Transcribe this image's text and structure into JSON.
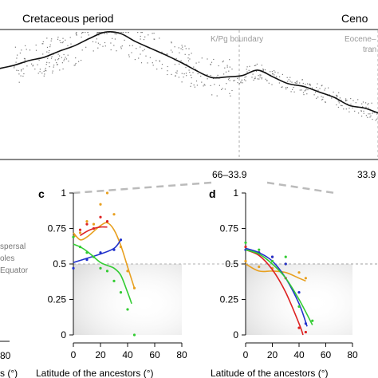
{
  "top_panel": {
    "period_left": "Cretaceous period",
    "period_right": "Ceno",
    "boundary_label": "K/Pg boundary",
    "eocene_label_1": "Eocene–",
    "eocene_label_2": "tran",
    "interval_left": "66–33.9",
    "interval_right": "33.9"
  },
  "left_stub": {
    "legend_1": "spersal",
    "legend_2": "oles",
    "legend_3": "Equator",
    "x_tick_80": "80",
    "x_label": "s (°)"
  },
  "chart_data": [
    {
      "type": "line",
      "panel": "top",
      "title": "",
      "xlabel": "",
      "ylabel": "",
      "smooth_curve": {
        "t": [
          0,
          4,
          8,
          12,
          16,
          20,
          24,
          28,
          32,
          36,
          40,
          44,
          48,
          52,
          56,
          60,
          64,
          68,
          72,
          76,
          80,
          84,
          88,
          92,
          96,
          100
        ],
        "y": [
          0.28,
          0.33,
          0.4,
          0.45,
          0.54,
          0.62,
          0.73,
          0.82,
          0.8,
          0.68,
          0.58,
          0.48,
          0.37,
          0.25,
          0.15,
          0.16,
          0.18,
          0.26,
          0.16,
          0.06,
          0.02,
          -0.06,
          -0.14,
          -0.26,
          -0.3,
          -0.38
        ]
      },
      "boundaries": [
        "K/Pg boundary",
        "Eocene–"
      ]
    },
    {
      "type": "scatter",
      "panel": "c",
      "xlabel": "Latitude of the ancestors (°)",
      "ylabel": "",
      "xlim": [
        0,
        80
      ],
      "ylim": [
        0,
        1
      ],
      "x_ticks": [
        0,
        20,
        40,
        60,
        80
      ],
      "y_ticks": [
        0,
        0.25,
        0.5,
        0.75,
        1
      ],
      "y_tick_labels": [
        "0",
        "0.25",
        "0.5",
        "0.75",
        "1"
      ],
      "reference_line": 0.5,
      "series": [
        {
          "color": "#e8a020",
          "points": [
            [
              1,
              0.7
            ],
            [
              5,
              0.72
            ],
            [
              10,
              0.8
            ],
            [
              15,
              0.78
            ],
            [
              20,
              0.92
            ],
            [
              25,
              1.0
            ],
            [
              30,
              0.85
            ],
            [
              35,
              0.62
            ],
            [
              40,
              0.45
            ],
            [
              45,
              0.33
            ]
          ],
          "fit": [
            [
              0,
              0.72
            ],
            [
              5,
              0.67
            ],
            [
              10,
              0.69
            ],
            [
              15,
              0.73
            ],
            [
              20,
              0.77
            ],
            [
              25,
              0.79
            ],
            [
              30,
              0.74
            ],
            [
              35,
              0.63
            ],
            [
              40,
              0.48
            ],
            [
              45,
              0.33
            ]
          ]
        },
        {
          "color": "#dd2222",
          "points": [
            [
              5,
              0.74
            ],
            [
              10,
              0.78
            ],
            [
              15,
              0.75
            ],
            [
              20,
              0.83
            ],
            [
              25,
              0.8
            ]
          ],
          "fit": [
            [
              5,
              0.7
            ],
            [
              10,
              0.73
            ],
            [
              15,
              0.75
            ],
            [
              20,
              0.76
            ],
            [
              25,
              0.76
            ]
          ]
        },
        {
          "color": "#2233cc",
          "points": [
            [
              0,
              0.47
            ],
            [
              10,
              0.53
            ],
            [
              20,
              0.58
            ],
            [
              30,
              0.6
            ],
            [
              35,
              0.67
            ]
          ],
          "fit": [
            [
              0,
              0.51
            ],
            [
              10,
              0.54
            ],
            [
              20,
              0.57
            ],
            [
              30,
              0.61
            ],
            [
              35,
              0.67
            ]
          ]
        },
        {
          "color": "#33cc33",
          "points": [
            [
              0,
              0.69
            ],
            [
              5,
              0.62
            ],
            [
              10,
              0.58
            ],
            [
              15,
              0.55
            ],
            [
              20,
              0.47
            ],
            [
              25,
              0.45
            ],
            [
              30,
              0.38
            ],
            [
              35,
              0.3
            ],
            [
              40,
              0.18
            ],
            [
              45,
              0.0
            ]
          ],
          "fit": [
            [
              0,
              0.64
            ],
            [
              5,
              0.62
            ],
            [
              10,
              0.59
            ],
            [
              15,
              0.55
            ],
            [
              20,
              0.51
            ],
            [
              25,
              0.49
            ],
            [
              30,
              0.47
            ],
            [
              35,
              0.42
            ],
            [
              40,
              0.3
            ],
            [
              43,
              0.22
            ]
          ]
        }
      ]
    },
    {
      "type": "scatter",
      "panel": "d",
      "xlabel": "Latitude of the ancestors (°)",
      "ylabel": "",
      "xlim": [
        0,
        80
      ],
      "ylim": [
        0,
        1
      ],
      "x_ticks": [
        0,
        20,
        40,
        60,
        80
      ],
      "y_ticks": [
        0,
        0.25,
        0.5,
        0.75,
        1
      ],
      "y_tick_labels": [
        "0",
        "0.25",
        "0.5",
        "0.75",
        "1"
      ],
      "reference_line": 0.5,
      "series": [
        {
          "color": "#e8a020",
          "points": [
            [
              0,
              0.52
            ],
            [
              10,
              0.48
            ],
            [
              20,
              0.47
            ],
            [
              30,
              0.5
            ],
            [
              40,
              0.44
            ],
            [
              45,
              0.4
            ]
          ],
          "fit": [
            [
              0,
              0.5
            ],
            [
              10,
              0.45
            ],
            [
              20,
              0.45
            ],
            [
              30,
              0.44
            ],
            [
              40,
              0.4
            ],
            [
              45,
              0.38
            ]
          ]
        },
        {
          "color": "#dd2222",
          "points": [
            [
              0,
              0.62
            ],
            [
              10,
              0.58
            ],
            [
              20,
              0.55
            ],
            [
              30,
              0.4
            ],
            [
              40,
              0.05
            ],
            [
              45,
              0.02
            ]
          ],
          "fit": [
            [
              0,
              0.6
            ],
            [
              10,
              0.56
            ],
            [
              20,
              0.46
            ],
            [
              30,
              0.3
            ],
            [
              40,
              0.08
            ],
            [
              43,
              0.0
            ]
          ]
        },
        {
          "color": "#2233cc",
          "points": [
            [
              0,
              0.6
            ],
            [
              10,
              0.58
            ],
            [
              20,
              0.55
            ],
            [
              30,
              0.5
            ],
            [
              40,
              0.3
            ],
            [
              45,
              0.08
            ]
          ],
          "fit": [
            [
              0,
              0.61
            ],
            [
              10,
              0.58
            ],
            [
              20,
              0.52
            ],
            [
              30,
              0.4
            ],
            [
              40,
              0.22
            ],
            [
              46,
              0.06
            ]
          ]
        },
        {
          "color": "#33cc33",
          "points": [
            [
              0,
              0.65
            ],
            [
              10,
              0.6
            ],
            [
              20,
              0.52
            ],
            [
              30,
              0.55
            ],
            [
              40,
              0.2
            ],
            [
              50,
              0.1
            ]
          ],
          "fit": [
            [
              0,
              0.6
            ],
            [
              10,
              0.57
            ],
            [
              20,
              0.5
            ],
            [
              30,
              0.4
            ],
            [
              40,
              0.25
            ],
            [
              50,
              0.07
            ]
          ]
        }
      ]
    }
  ],
  "panel_c": {
    "label": "c",
    "x_tick_labels": [
      "0",
      "20",
      "40",
      "60",
      "80"
    ],
    "xlabel": "Latitude of the ancestors (°)"
  },
  "panel_d": {
    "label": "d",
    "x_tick_labels": [
      "0",
      "20",
      "40",
      "60",
      "80"
    ],
    "xlabel": "Latitude of the ancestors (°)"
  },
  "colors": {
    "axis": "#111111",
    "dashed": "#999999",
    "shade": "#d4d4d4",
    "scatter_grey": "#777777"
  }
}
